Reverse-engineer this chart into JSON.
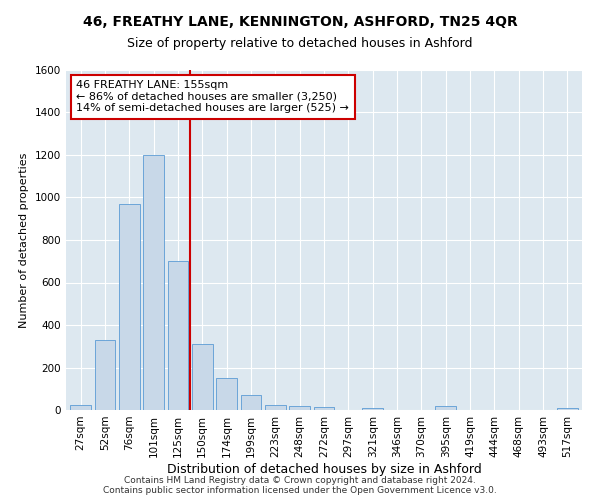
{
  "title": "46, FREATHY LANE, KENNINGTON, ASHFORD, TN25 4QR",
  "subtitle": "Size of property relative to detached houses in Ashford",
  "xlabel": "Distribution of detached houses by size in Ashford",
  "ylabel": "Number of detached properties",
  "categories": [
    "27sqm",
    "52sqm",
    "76sqm",
    "101sqm",
    "125sqm",
    "150sqm",
    "174sqm",
    "199sqm",
    "223sqm",
    "248sqm",
    "272sqm",
    "297sqm",
    "321sqm",
    "346sqm",
    "370sqm",
    "395sqm",
    "419sqm",
    "444sqm",
    "468sqm",
    "493sqm",
    "517sqm"
  ],
  "values": [
    25,
    330,
    970,
    1200,
    700,
    310,
    150,
    70,
    25,
    20,
    15,
    0,
    10,
    0,
    0,
    20,
    0,
    0,
    0,
    0,
    10
  ],
  "bar_color": "#c8d8e8",
  "bar_edge_color": "#5b9bd5",
  "marker_index": 5,
  "marker_label": "46 FREATHY LANE: 155sqm",
  "marker_stat1": "← 86% of detached houses are smaller (3,250)",
  "marker_stat2": "14% of semi-detached houses are larger (525) →",
  "marker_color": "#cc0000",
  "ylim": [
    0,
    1600
  ],
  "yticks": [
    0,
    200,
    400,
    600,
    800,
    1000,
    1200,
    1400,
    1600
  ],
  "annotation_box_color": "#ffffff",
  "annotation_box_edge": "#cc0000",
  "bg_color": "#dde8f0",
  "grid_color": "#ffffff",
  "footer": "Contains HM Land Registry data © Crown copyright and database right 2024.\nContains public sector information licensed under the Open Government Licence v3.0.",
  "title_fontsize": 10,
  "subtitle_fontsize": 9,
  "xlabel_fontsize": 9,
  "ylabel_fontsize": 8,
  "tick_fontsize": 7.5,
  "footer_fontsize": 6.5,
  "annot_fontsize": 8
}
